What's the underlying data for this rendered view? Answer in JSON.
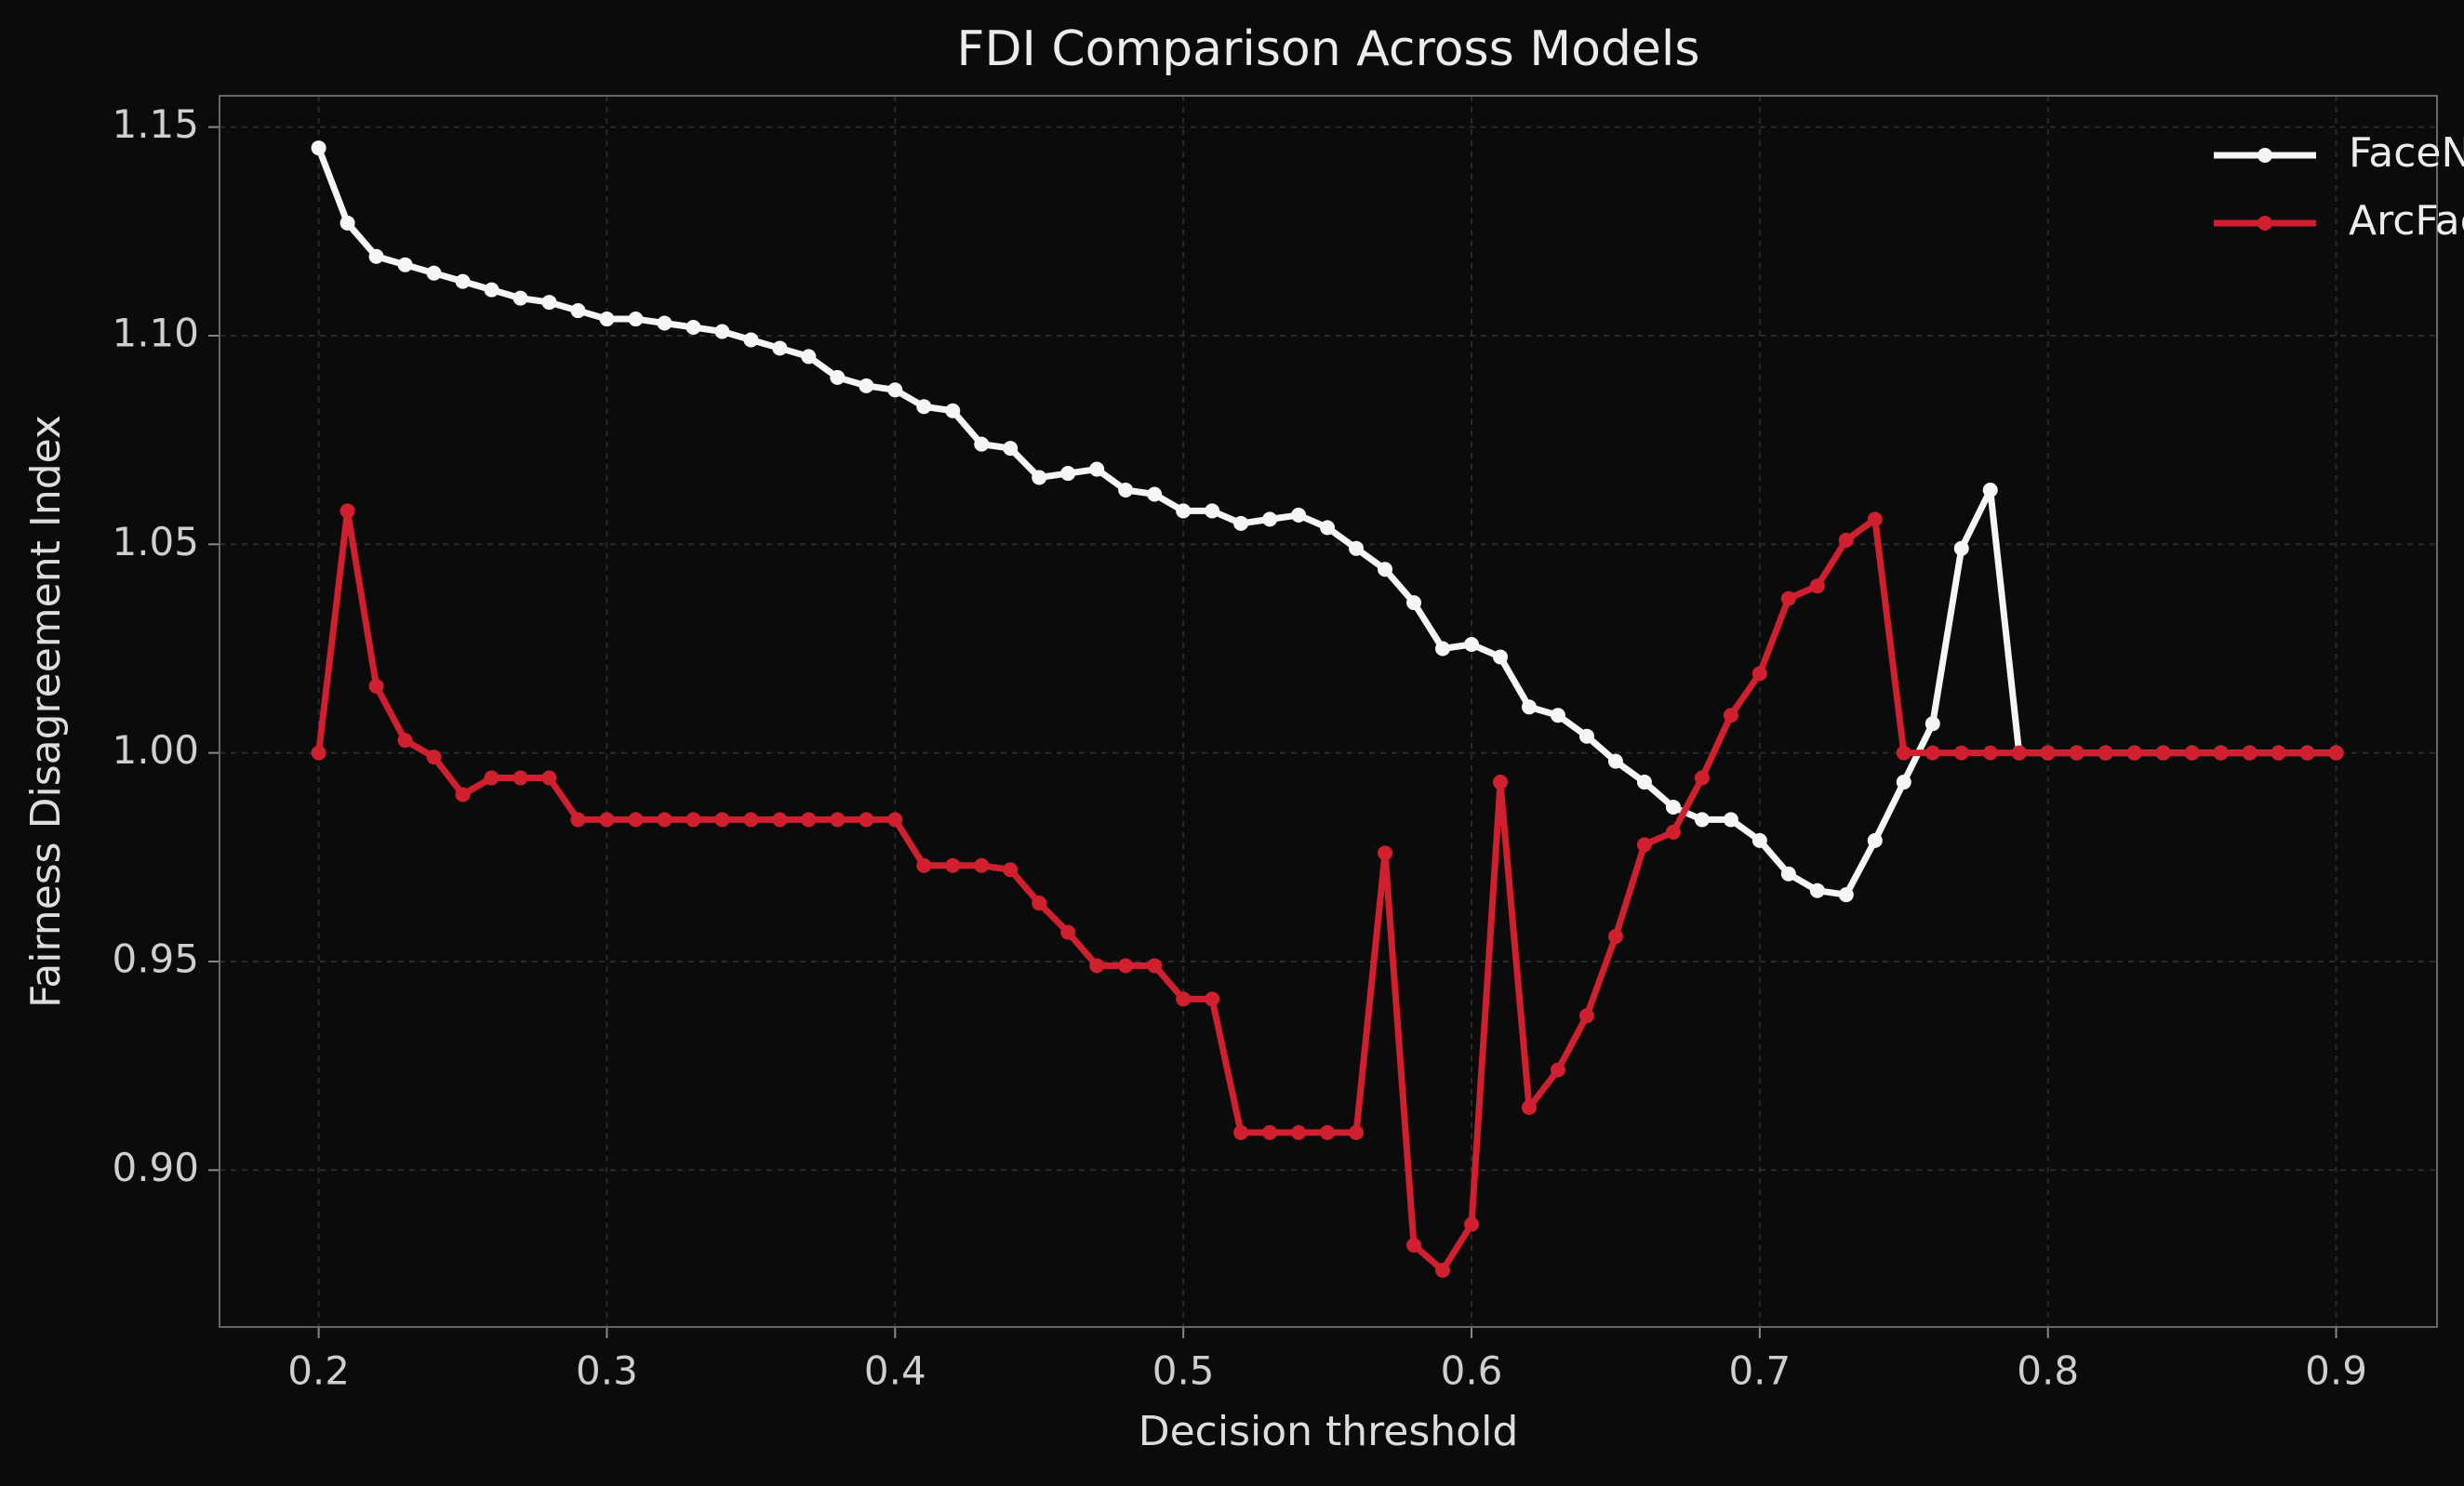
{
  "chart_data": {
    "type": "line",
    "title": "FDI Comparison Across Models",
    "x_label": "Decision threshold",
    "y_label": "Fairness Disagreement Index",
    "x": [
      0.2,
      0.21,
      0.22,
      0.23,
      0.24,
      0.25,
      0.26,
      0.27,
      0.28,
      0.29,
      0.3,
      0.31,
      0.32,
      0.33,
      0.34,
      0.35,
      0.36,
      0.37,
      0.38,
      0.39,
      0.4,
      0.41,
      0.42,
      0.43,
      0.44,
      0.45,
      0.46,
      0.47,
      0.48,
      0.49,
      0.5,
      0.51,
      0.52,
      0.53,
      0.54,
      0.55,
      0.56,
      0.57,
      0.58,
      0.59,
      0.6,
      0.61,
      0.62,
      0.63,
      0.64,
      0.65,
      0.66,
      0.67,
      0.68,
      0.69,
      0.7,
      0.71,
      0.72,
      0.73,
      0.74,
      0.75,
      0.76,
      0.77,
      0.78,
      0.79,
      0.8,
      0.81,
      0.82,
      0.83,
      0.84,
      0.85,
      0.86,
      0.87,
      0.88,
      0.89,
      0.9
    ],
    "series": [
      {
        "name": "FaceNet",
        "color": "#f5f5f5",
        "values": [
          1.145,
          1.127,
          1.119,
          1.117,
          1.115,
          1.113,
          1.111,
          1.109,
          1.108,
          1.106,
          1.104,
          1.104,
          1.103,
          1.102,
          1.101,
          1.099,
          1.097,
          1.095,
          1.09,
          1.088,
          1.087,
          1.083,
          1.082,
          1.074,
          1.073,
          1.066,
          1.067,
          1.068,
          1.063,
          1.062,
          1.058,
          1.058,
          1.055,
          1.056,
          1.057,
          1.054,
          1.049,
          1.044,
          1.036,
          1.025,
          1.026,
          1.023,
          1.011,
          1.009,
          1.004,
          0.998,
          0.993,
          0.987,
          0.984,
          0.984,
          0.979,
          0.971,
          0.967,
          0.966,
          0.979,
          0.993,
          1.007,
          1.049,
          1.063,
          1.0,
          1.0,
          1.0,
          1.0,
          1.0,
          1.0,
          1.0,
          1.0,
          1.0,
          1.0,
          1.0,
          1.0
        ]
      },
      {
        "name": "ArcFace",
        "color": "#d01f2e",
        "values": [
          1.0,
          1.058,
          1.016,
          1.003,
          0.999,
          0.99,
          0.994,
          0.994,
          0.994,
          0.984,
          0.984,
          0.984,
          0.984,
          0.984,
          0.984,
          0.984,
          0.984,
          0.984,
          0.984,
          0.984,
          0.984,
          0.973,
          0.973,
          0.973,
          0.972,
          0.964,
          0.957,
          0.949,
          0.949,
          0.949,
          0.941,
          0.941,
          0.909,
          0.909,
          0.909,
          0.909,
          0.909,
          0.976,
          0.882,
          0.876,
          0.887,
          0.993,
          0.915,
          0.924,
          0.937,
          0.956,
          0.978,
          0.981,
          0.994,
          1.009,
          1.019,
          1.037,
          1.04,
          1.051,
          1.056,
          1.0,
          1.0,
          1.0,
          1.0,
          1.0,
          1.0,
          1.0,
          1.0,
          1.0,
          1.0,
          1.0,
          1.0,
          1.0,
          1.0,
          1.0,
          1.0
        ]
      }
    ],
    "xlim": [
      0.1656,
      0.935
    ],
    "ylim": [
      0.8624,
      1.1575
    ],
    "xticks": [
      0.2,
      0.3,
      0.4,
      0.5,
      0.6,
      0.7,
      0.8,
      0.9
    ],
    "yticks": [
      {
        "value": 0.9,
        "label": "0.90"
      },
      {
        "value": 0.95,
        "label": "0.95"
      },
      {
        "value": 1.0,
        "label": "1.00"
      },
      {
        "value": 1.05,
        "label": "1.05"
      },
      {
        "value": 1.1,
        "label": "1.10"
      },
      {
        "value": 1.15,
        "label": "1.15"
      }
    ],
    "grid": true,
    "legend": "upper-right"
  }
}
